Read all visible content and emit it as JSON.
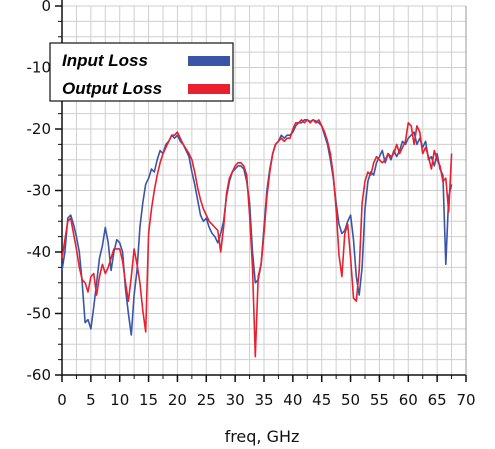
{
  "chart_data": {
    "type": "line",
    "title": "",
    "xlabel": "freq, GHz",
    "ylabel": "",
    "xlim": [
      0,
      70
    ],
    "ylim": [
      -60,
      0
    ],
    "x_ticks": [
      0,
      5,
      10,
      15,
      20,
      25,
      30,
      35,
      40,
      45,
      50,
      55,
      60,
      65,
      70
    ],
    "y_ticks": [
      0,
      -10,
      -20,
      -30,
      -40,
      -50,
      -60
    ],
    "grid": true,
    "legend_position": "top-left",
    "series": [
      {
        "name": "Input Loss",
        "color": "#3a55a8",
        "points": [
          [
            0,
            -43
          ],
          [
            0.5,
            -40
          ],
          [
            1,
            -34.5
          ],
          [
            1.5,
            -34
          ],
          [
            2,
            -35.5
          ],
          [
            2.5,
            -37.5
          ],
          [
            3,
            -40
          ],
          [
            3.5,
            -45
          ],
          [
            4,
            -51.5
          ],
          [
            4.5,
            -51
          ],
          [
            5,
            -52.5
          ],
          [
            5.5,
            -49
          ],
          [
            6,
            -45
          ],
          [
            6.5,
            -41
          ],
          [
            7,
            -39
          ],
          [
            7.5,
            -36
          ],
          [
            8,
            -38.5
          ],
          [
            8.5,
            -43
          ],
          [
            9,
            -40
          ],
          [
            9.5,
            -38
          ],
          [
            10,
            -38.5
          ],
          [
            10.5,
            -40
          ],
          [
            11,
            -46
          ],
          [
            11.5,
            -50
          ],
          [
            12,
            -53.5
          ],
          [
            12.5,
            -47
          ],
          [
            13,
            -43
          ],
          [
            13.5,
            -36
          ],
          [
            14,
            -32
          ],
          [
            14.5,
            -29
          ],
          [
            15,
            -28
          ],
          [
            15.5,
            -26.5
          ],
          [
            16,
            -27
          ],
          [
            16.5,
            -25
          ],
          [
            17,
            -23.5
          ],
          [
            17.5,
            -24
          ],
          [
            18,
            -22.5
          ],
          [
            18.5,
            -22
          ],
          [
            19,
            -21
          ],
          [
            19.5,
            -21.5
          ],
          [
            20,
            -21
          ],
          [
            20.5,
            -22
          ],
          [
            21,
            -22.5
          ],
          [
            22,
            -24.5
          ],
          [
            22.5,
            -27
          ],
          [
            23,
            -29
          ],
          [
            23.5,
            -31.5
          ],
          [
            24,
            -34
          ],
          [
            24.5,
            -35
          ],
          [
            25,
            -34.5
          ],
          [
            25.5,
            -36
          ],
          [
            26,
            -37
          ],
          [
            26.5,
            -37.5
          ],
          [
            27,
            -38.5
          ],
          [
            27.5,
            -37
          ],
          [
            28,
            -35
          ],
          [
            28.5,
            -31
          ],
          [
            29,
            -28.5
          ],
          [
            29.5,
            -27
          ],
          [
            30,
            -26.5
          ],
          [
            30.5,
            -26
          ],
          [
            31,
            -26
          ],
          [
            31.5,
            -26.5
          ],
          [
            32,
            -28.5
          ],
          [
            32.5,
            -32
          ],
          [
            33,
            -40
          ],
          [
            33.5,
            -45
          ],
          [
            34,
            -44.5
          ],
          [
            34.5,
            -42
          ],
          [
            35,
            -36
          ],
          [
            35.5,
            -30
          ],
          [
            36,
            -26.5
          ],
          [
            36.5,
            -24
          ],
          [
            37,
            -22.5
          ],
          [
            37.5,
            -22
          ],
          [
            38,
            -21
          ],
          [
            38.5,
            -21.5
          ],
          [
            39,
            -21
          ],
          [
            39.5,
            -21
          ],
          [
            40,
            -20.5
          ],
          [
            40.5,
            -19.5
          ],
          [
            41,
            -19
          ],
          [
            41.5,
            -19
          ],
          [
            42,
            -18.5
          ],
          [
            42.5,
            -18.5
          ],
          [
            43,
            -18.8
          ],
          [
            43.5,
            -18.5
          ],
          [
            44,
            -18.7
          ],
          [
            44.5,
            -19
          ],
          [
            45,
            -19.5
          ],
          [
            45.5,
            -21
          ],
          [
            46,
            -22.5
          ],
          [
            46.5,
            -25
          ],
          [
            47,
            -28
          ],
          [
            47.5,
            -32
          ],
          [
            48,
            -35.5
          ],
          [
            48.5,
            -37
          ],
          [
            49,
            -36.5
          ],
          [
            49.5,
            -35
          ],
          [
            50,
            -34
          ],
          [
            50.5,
            -38
          ],
          [
            51,
            -44
          ],
          [
            51.5,
            -47
          ],
          [
            52,
            -42.5
          ],
          [
            52.5,
            -33
          ],
          [
            53,
            -28.5
          ],
          [
            53.5,
            -27
          ],
          [
            54,
            -27.5
          ],
          [
            54.5,
            -25.5
          ],
          [
            55,
            -24.5
          ],
          [
            55.5,
            -23.5
          ],
          [
            56,
            -25.5
          ],
          [
            56.5,
            -24
          ],
          [
            57,
            -25
          ],
          [
            57.5,
            -23.5
          ],
          [
            58,
            -24.5
          ],
          [
            58.5,
            -23.5
          ],
          [
            59,
            -22
          ],
          [
            59.5,
            -22.5
          ],
          [
            60,
            -21.5
          ],
          [
            60.5,
            -21
          ],
          [
            61,
            -20.5
          ],
          [
            61.5,
            -22.5
          ],
          [
            62,
            -21.5
          ],
          [
            62.5,
            -23
          ],
          [
            63,
            -22
          ],
          [
            63.5,
            -25
          ],
          [
            64,
            -24.5
          ],
          [
            64.5,
            -26
          ],
          [
            65,
            -24
          ],
          [
            65.5,
            -26.5
          ],
          [
            66,
            -27.5
          ],
          [
            66.5,
            -42
          ],
          [
            67,
            -31
          ],
          [
            67.5,
            -29
          ]
        ]
      },
      {
        "name": "Output Loss",
        "color": "#e8202f",
        "points": [
          [
            0,
            -41
          ],
          [
            0.5,
            -38
          ],
          [
            1,
            -35
          ],
          [
            1.5,
            -34.5
          ],
          [
            2,
            -37
          ],
          [
            2.5,
            -39.5
          ],
          [
            3,
            -42.5
          ],
          [
            3.5,
            -44.5
          ],
          [
            4,
            -45
          ],
          [
            4.5,
            -46.5
          ],
          [
            5,
            -44
          ],
          [
            5.5,
            -43.5
          ],
          [
            6,
            -47
          ],
          [
            6.5,
            -44
          ],
          [
            7,
            -42
          ],
          [
            7.5,
            -43.5
          ],
          [
            8,
            -42.5
          ],
          [
            8.5,
            -41
          ],
          [
            9,
            -39.5
          ],
          [
            9.5,
            -39.5
          ],
          [
            10,
            -39.5
          ],
          [
            10.5,
            -41.5
          ],
          [
            11,
            -45
          ],
          [
            11.5,
            -48
          ],
          [
            12,
            -44
          ],
          [
            12.5,
            -39.5
          ],
          [
            13,
            -42
          ],
          [
            13.5,
            -45
          ],
          [
            14,
            -49.5
          ],
          [
            14.5,
            -53
          ],
          [
            15,
            -37
          ],
          [
            15.5,
            -33
          ],
          [
            16,
            -30
          ],
          [
            16.5,
            -27.5
          ],
          [
            17,
            -25.5
          ],
          [
            17.5,
            -24
          ],
          [
            18,
            -23
          ],
          [
            18.5,
            -22
          ],
          [
            19,
            -21
          ],
          [
            19.5,
            -21
          ],
          [
            20,
            -20.5
          ],
          [
            20.5,
            -21.5
          ],
          [
            21,
            -22.5
          ],
          [
            22,
            -24
          ],
          [
            22.5,
            -25
          ],
          [
            23,
            -27
          ],
          [
            23.5,
            -29.5
          ],
          [
            24,
            -31.5
          ],
          [
            24.5,
            -33
          ],
          [
            25,
            -34
          ],
          [
            25.5,
            -35
          ],
          [
            26,
            -35.5
          ],
          [
            26.5,
            -36
          ],
          [
            27,
            -36.5
          ],
          [
            27.5,
            -40
          ],
          [
            28,
            -36
          ],
          [
            28.5,
            -30.5
          ],
          [
            29,
            -28
          ],
          [
            29.5,
            -27
          ],
          [
            30,
            -26
          ],
          [
            30.5,
            -25.5
          ],
          [
            31,
            -25.5
          ],
          [
            31.5,
            -26
          ],
          [
            32,
            -27.5
          ],
          [
            32.5,
            -34
          ],
          [
            33,
            -42.5
          ],
          [
            33.5,
            -57
          ],
          [
            34,
            -44
          ],
          [
            34.5,
            -42
          ],
          [
            35,
            -37
          ],
          [
            35.5,
            -31
          ],
          [
            36,
            -27
          ],
          [
            36.5,
            -24
          ],
          [
            37,
            -22.5
          ],
          [
            37.5,
            -22
          ],
          [
            38,
            -21.5
          ],
          [
            38.5,
            -22
          ],
          [
            39,
            -21.5
          ],
          [
            39.5,
            -21.5
          ],
          [
            40,
            -20
          ],
          [
            40.5,
            -19
          ],
          [
            41,
            -19
          ],
          [
            41.5,
            -18.5
          ],
          [
            42,
            -19
          ],
          [
            42.5,
            -18.5
          ],
          [
            43,
            -19
          ],
          [
            43.5,
            -18.5
          ],
          [
            44,
            -19
          ],
          [
            44.5,
            -18.5
          ],
          [
            45,
            -19.5
          ],
          [
            45.5,
            -20.5
          ],
          [
            46,
            -22
          ],
          [
            46.5,
            -24
          ],
          [
            47,
            -27.5
          ],
          [
            47.5,
            -33
          ],
          [
            48,
            -40.5
          ],
          [
            48.5,
            -44
          ],
          [
            49,
            -37
          ],
          [
            49.5,
            -35.5
          ],
          [
            50,
            -41
          ],
          [
            50.5,
            -47.5
          ],
          [
            51,
            -48
          ],
          [
            51.5,
            -43
          ],
          [
            52,
            -32
          ],
          [
            52.5,
            -28.5
          ],
          [
            53,
            -27
          ],
          [
            53.5,
            -27.5
          ],
          [
            54,
            -25.5
          ],
          [
            54.5,
            -24.5
          ],
          [
            55,
            -25
          ],
          [
            55.5,
            -25.5
          ],
          [
            56,
            -25
          ],
          [
            56.5,
            -24
          ],
          [
            57,
            -24.5
          ],
          [
            57.5,
            -24
          ],
          [
            58,
            -22.5
          ],
          [
            58.5,
            -24
          ],
          [
            59,
            -23
          ],
          [
            59.5,
            -22
          ],
          [
            60,
            -19
          ],
          [
            60.5,
            -19.5
          ],
          [
            61,
            -22.5
          ],
          [
            61.5,
            -19.5
          ],
          [
            62,
            -20.5
          ],
          [
            62.5,
            -24
          ],
          [
            63,
            -23
          ],
          [
            63.5,
            -24.5
          ],
          [
            64,
            -26.5
          ],
          [
            64.5,
            -23.5
          ],
          [
            65,
            -25
          ],
          [
            65.5,
            -26
          ],
          [
            66,
            -28.5
          ],
          [
            66.5,
            -28
          ],
          [
            67,
            -33.5
          ],
          [
            67.5,
            -24
          ]
        ]
      }
    ]
  }
}
